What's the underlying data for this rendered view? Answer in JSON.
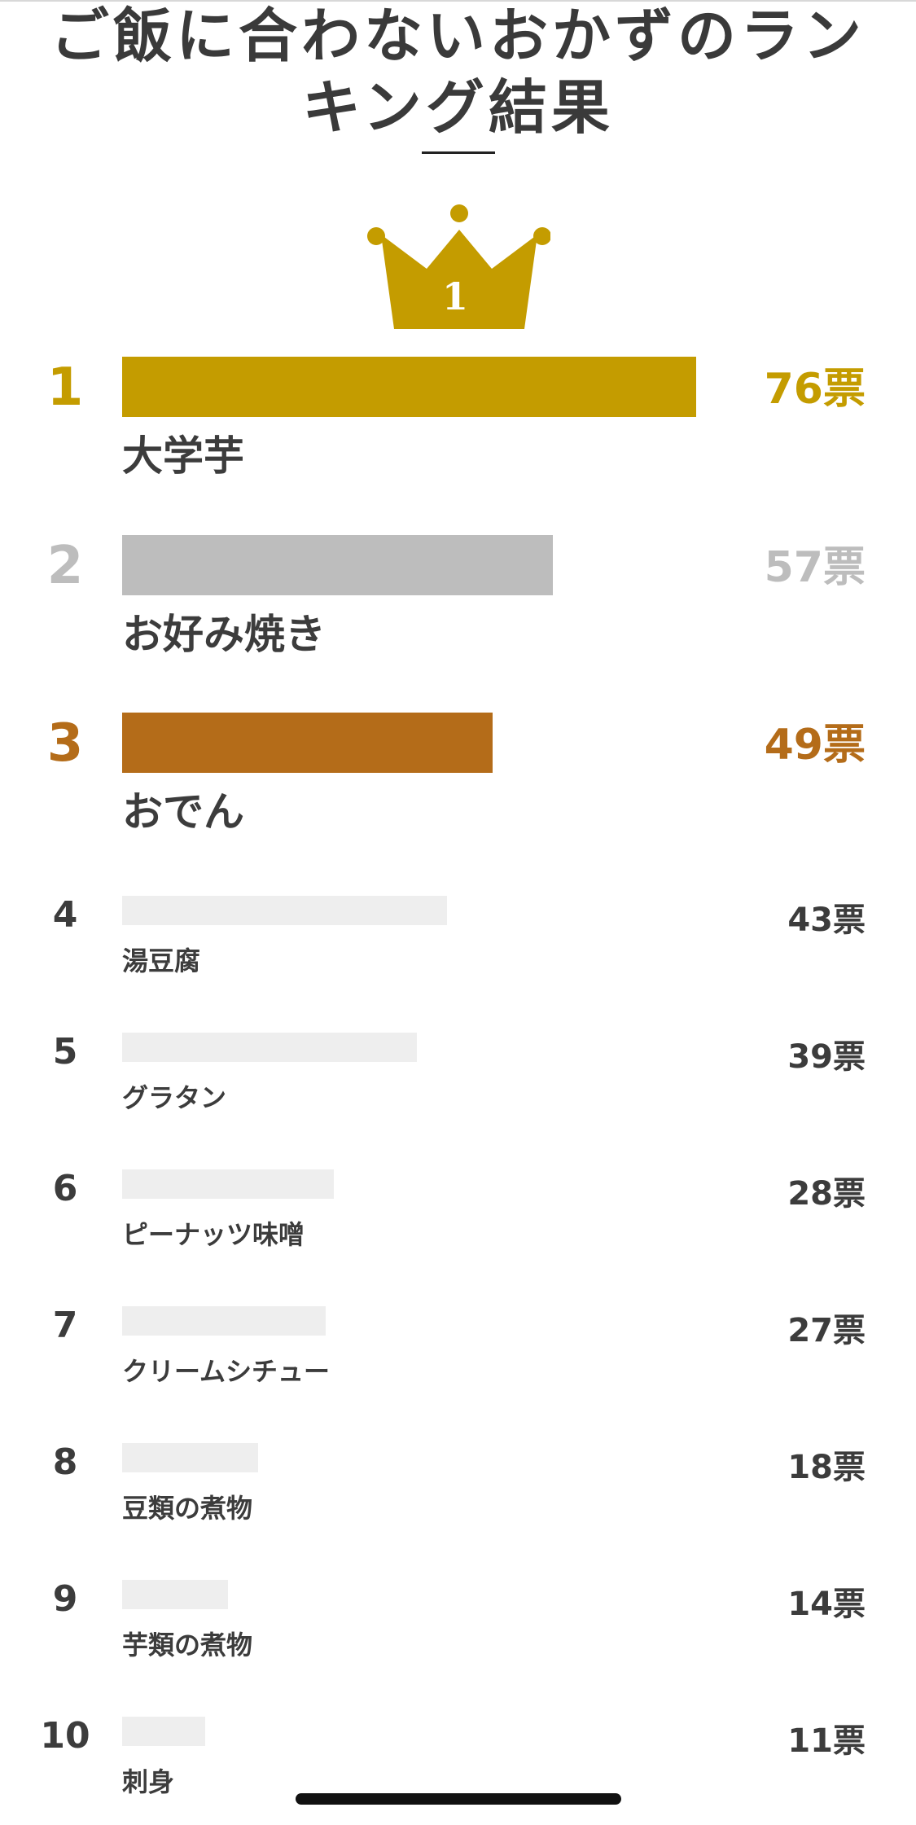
{
  "title": "ご飯に合わないおかずのランキング結果",
  "crown": {
    "number": "1",
    "color": "#C49C00"
  },
  "colors": {
    "gold": "#C49C00",
    "silver": "#BDBDBD",
    "bronze": "#B46C19",
    "plain_bar": "#EEEEEE",
    "text": "#3C3C3C"
  },
  "max_votes": 76,
  "rankings": [
    {
      "rank": "1",
      "name": "大学芋",
      "votes": 76,
      "votes_label": "76票"
    },
    {
      "rank": "2",
      "name": "お好み焼き",
      "votes": 57,
      "votes_label": "57票"
    },
    {
      "rank": "3",
      "name": "おでん",
      "votes": 49,
      "votes_label": "49票"
    },
    {
      "rank": "4",
      "name": "湯豆腐",
      "votes": 43,
      "votes_label": "43票"
    },
    {
      "rank": "5",
      "name": "グラタン",
      "votes": 39,
      "votes_label": "39票"
    },
    {
      "rank": "6",
      "name": "ピーナッツ味噌",
      "votes": 28,
      "votes_label": "28票"
    },
    {
      "rank": "7",
      "name": "クリームシチュー",
      "votes": 27,
      "votes_label": "27票"
    },
    {
      "rank": "8",
      "name": "豆類の煮物",
      "votes": 18,
      "votes_label": "18票"
    },
    {
      "rank": "9",
      "name": "芋類の煮物",
      "votes": 14,
      "votes_label": "14票"
    },
    {
      "rank": "10",
      "name": "刺身",
      "votes": 11,
      "votes_label": "11票"
    }
  ]
}
